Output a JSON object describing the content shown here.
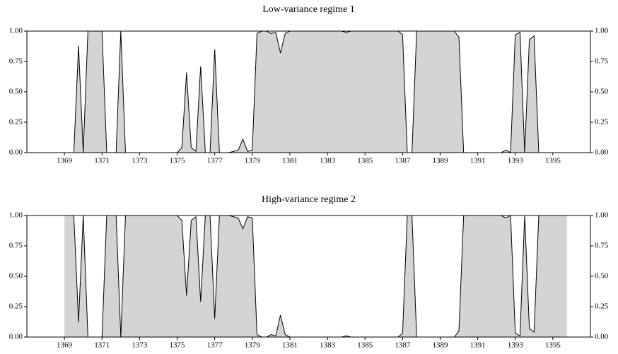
{
  "chart_data": [
    {
      "type": "area",
      "title": "Low-variance regime 1",
      "xlim": [
        1367,
        1397
      ],
      "ylim": [
        0,
        1
      ],
      "xticks": [
        1369,
        1371,
        1373,
        1375,
        1377,
        1379,
        1381,
        1383,
        1385,
        1387,
        1389,
        1391,
        1393,
        1395
      ],
      "yticks": [
        {
          "value": 0,
          "label": "0.00"
        },
        {
          "value": 0.25,
          "label": "0.25"
        },
        {
          "value": 0.5,
          "label": "0.50"
        },
        {
          "value": 0.75,
          "label": "0.75"
        },
        {
          "value": 1,
          "label": "1.00"
        }
      ],
      "y2lim": [
        0,
        1
      ],
      "y2ticks": [
        {
          "value": 0,
          "label": "0.00"
        },
        {
          "value": 0.25,
          "label": "0.25"
        },
        {
          "value": 0.5,
          "label": "0.50"
        },
        {
          "value": 0.75,
          "label": "0.75"
        },
        {
          "value": 1,
          "label": "1.00"
        }
      ],
      "line_color": "#000000",
      "fill_color": "#d4d4d4",
      "x": [
        1369,
        1369.25,
        1369.5,
        1369.75,
        1370,
        1370.25,
        1370.5,
        1370.75,
        1371,
        1371.25,
        1371.5,
        1371.75,
        1372,
        1372.25,
        1372.5,
        1372.75,
        1373,
        1373.25,
        1373.5,
        1373.75,
        1374,
        1374.25,
        1374.5,
        1374.75,
        1375,
        1375.25,
        1375.5,
        1375.75,
        1376,
        1376.25,
        1376.5,
        1376.75,
        1377,
        1377.25,
        1377.5,
        1377.75,
        1378,
        1378.25,
        1378.5,
        1378.75,
        1379,
        1379.25,
        1379.5,
        1379.75,
        1380,
        1380.25,
        1380.5,
        1380.75,
        1381,
        1381.25,
        1381.5,
        1381.75,
        1382,
        1382.25,
        1382.5,
        1382.75,
        1383,
        1383.25,
        1383.5,
        1383.75,
        1384,
        1384.25,
        1384.5,
        1384.75,
        1385,
        1385.25,
        1385.5,
        1385.75,
        1386,
        1386.25,
        1386.5,
        1386.75,
        1387,
        1387.25,
        1387.5,
        1387.75,
        1388,
        1388.25,
        1388.5,
        1388.75,
        1389,
        1389.25,
        1389.5,
        1389.75,
        1390,
        1390.25,
        1390.5,
        1390.75,
        1391,
        1391.25,
        1391.5,
        1391.75,
        1392,
        1392.25,
        1392.5,
        1392.75,
        1393,
        1393.25,
        1393.5,
        1393.75,
        1394,
        1394.25,
        1394.5,
        1394.75,
        1395,
        1395.25,
        1395.5,
        1395.75
      ],
      "values": [
        0,
        0,
        0,
        0.88,
        0,
        1,
        1,
        1,
        1,
        0,
        0,
        0,
        1,
        0,
        0,
        0,
        0,
        0,
        0,
        0,
        0,
        0,
        0,
        0,
        0,
        0.04,
        0.66,
        0.04,
        0.01,
        0.71,
        0,
        0,
        0.85,
        0,
        0,
        0,
        0.01,
        0.02,
        0.11,
        0.01,
        0.02,
        0.98,
        1,
        1,
        0.98,
        0.99,
        0.82,
        0.98,
        1,
        1,
        1,
        1,
        1,
        1,
        1,
        1,
        1,
        1,
        1,
        1,
        0.99,
        1,
        1,
        1,
        1,
        1,
        1,
        1,
        1,
        1,
        1,
        1,
        0.97,
        0,
        0,
        1,
        1,
        1,
        1,
        1,
        1,
        1,
        1,
        1,
        0.95,
        0,
        0,
        0,
        0,
        0,
        0,
        0,
        0,
        0,
        0.02,
        0,
        0.97,
        0.99,
        0,
        0.93,
        0.96,
        0,
        0,
        0,
        0,
        0,
        0,
        0
      ]
    },
    {
      "type": "area",
      "title": "High-variance regime 2",
      "xlim": [
        1367,
        1397
      ],
      "ylim": [
        0,
        1
      ],
      "xticks": [
        1369,
        1371,
        1373,
        1375,
        1377,
        1379,
        1381,
        1383,
        1385,
        1387,
        1389,
        1391,
        1393,
        1395
      ],
      "yticks": [
        {
          "value": 0,
          "label": "0.00"
        },
        {
          "value": 0.25,
          "label": "0.25"
        },
        {
          "value": 0.5,
          "label": "0.50"
        },
        {
          "value": 0.75,
          "label": "0.75"
        },
        {
          "value": 1,
          "label": "1.00"
        }
      ],
      "y2lim": [
        0,
        1
      ],
      "y2ticks": [
        {
          "value": 0,
          "label": "0.00"
        },
        {
          "value": 0.25,
          "label": "0.25"
        },
        {
          "value": 0.5,
          "label": "0.50"
        },
        {
          "value": 0.75,
          "label": "0.75"
        },
        {
          "value": 1,
          "label": "1.00"
        }
      ],
      "line_color": "#000000",
      "fill_color": "#d4d4d4",
      "x": [
        1369,
        1369.25,
        1369.5,
        1369.75,
        1370,
        1370.25,
        1370.5,
        1370.75,
        1371,
        1371.25,
        1371.5,
        1371.75,
        1372,
        1372.25,
        1372.5,
        1372.75,
        1373,
        1373.25,
        1373.5,
        1373.75,
        1374,
        1374.25,
        1374.5,
        1374.75,
        1375,
        1375.25,
        1375.5,
        1375.75,
        1376,
        1376.25,
        1376.5,
        1376.75,
        1377,
        1377.25,
        1377.5,
        1377.75,
        1378,
        1378.25,
        1378.5,
        1378.75,
        1379,
        1379.25,
        1379.5,
        1379.75,
        1380,
        1380.25,
        1380.5,
        1380.75,
        1381,
        1381.25,
        1381.5,
        1381.75,
        1382,
        1382.25,
        1382.5,
        1382.75,
        1383,
        1383.25,
        1383.5,
        1383.75,
        1384,
        1384.25,
        1384.5,
        1384.75,
        1385,
        1385.25,
        1385.5,
        1385.75,
        1386,
        1386.25,
        1386.5,
        1386.75,
        1387,
        1387.25,
        1387.5,
        1387.75,
        1388,
        1388.25,
        1388.5,
        1388.75,
        1389,
        1389.25,
        1389.5,
        1389.75,
        1390,
        1390.25,
        1390.5,
        1390.75,
        1391,
        1391.25,
        1391.5,
        1391.75,
        1392,
        1392.25,
        1392.5,
        1392.75,
        1393,
        1393.25,
        1393.5,
        1393.75,
        1394,
        1394.25,
        1394.5,
        1394.75,
        1395,
        1395.25,
        1395.5,
        1395.75
      ],
      "values": [
        1,
        1,
        1,
        0.12,
        1,
        0,
        0,
        0,
        0,
        1,
        1,
        1,
        0,
        1,
        1,
        1,
        1,
        1,
        1,
        1,
        1,
        1,
        1,
        1,
        1,
        0.96,
        0.34,
        0.96,
        0.99,
        0.29,
        1,
        1,
        0.15,
        1,
        1,
        1,
        0.99,
        0.98,
        0.89,
        0.99,
        0.98,
        0.02,
        0,
        0,
        0.02,
        0.01,
        0.18,
        0.02,
        0,
        0,
        0,
        0,
        0,
        0,
        0,
        0,
        0,
        0,
        0,
        0,
        0.01,
        0,
        0,
        0,
        0,
        0,
        0,
        0,
        0,
        0,
        0,
        0,
        0.03,
        1,
        1,
        0,
        0,
        0,
        0,
        0,
        0,
        0,
        0,
        0,
        0.05,
        1,
        1,
        1,
        1,
        1,
        1,
        1,
        1,
        1,
        0.98,
        1,
        0.03,
        0.01,
        1,
        0.07,
        0.04,
        1,
        1,
        1,
        1,
        1,
        1,
        1
      ]
    }
  ]
}
